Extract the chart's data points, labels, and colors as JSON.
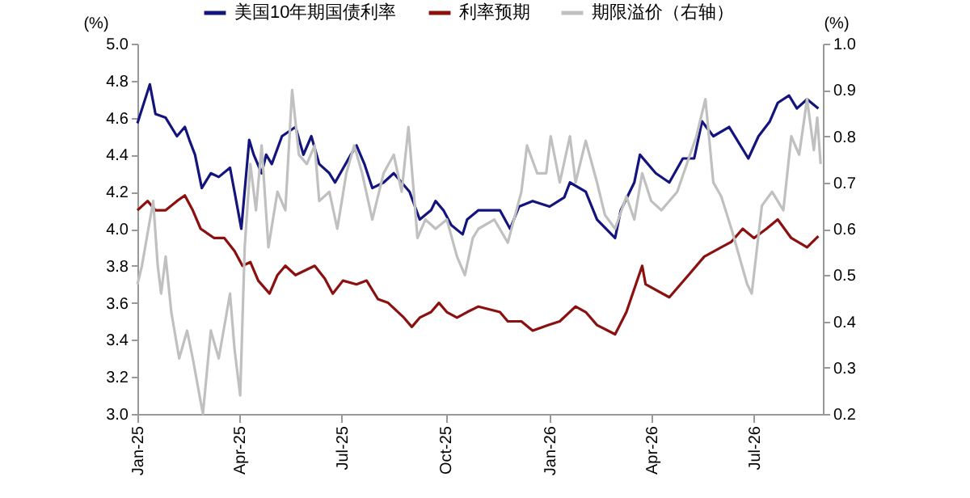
{
  "chart_data": {
    "type": "line",
    "ylabel": "(%)",
    "y2label": "(%)",
    "legend": "top",
    "xlim": [
      "2025-01-01",
      "2026-08-31"
    ],
    "xticks": [
      {
        "value": "2025-01-01",
        "label": "Jan-25"
      },
      {
        "value": "2025-04-01",
        "label": "Apr-25"
      },
      {
        "value": "2025-07-01",
        "label": "Jul-25"
      },
      {
        "value": "2025-10-01",
        "label": "Oct-25"
      },
      {
        "value": "2026-01-01",
        "label": "Jan-26"
      },
      {
        "value": "2026-04-01",
        "label": "Apr-26"
      },
      {
        "value": "2026-07-01",
        "label": "Jul-26"
      }
    ],
    "ylim": [
      3,
      5
    ],
    "yticks": [
      {
        "value": 3,
        "label": "3.0"
      },
      3.2,
      3.4,
      3.6,
      3.8,
      {
        "value": 4,
        "label": "4.0"
      },
      4.2,
      4.4,
      4.6,
      4.8,
      {
        "value": 5,
        "label": "5.0"
      }
    ],
    "y2lim": [
      0.2,
      1
    ],
    "y2ticks": [
      0.2,
      0.3,
      0.4,
      0.5,
      0.6,
      0.7,
      0.8,
      0.9,
      {
        "value": 1,
        "label": "1.0"
      }
    ],
    "series": [
      {
        "name": "美国10年期国债利率",
        "color": "#14147f",
        "x": [
          "2025-01-01",
          "2025-01-12",
          "2025-01-17",
          "2025-01-26",
          "2025-02-05",
          "2025-02-12",
          "2025-02-16",
          "2025-02-21",
          "2025-02-27",
          "2025-03-07",
          "2025-03-14",
          "2025-03-24",
          "2025-03-28",
          "2025-04-03",
          "2025-04-10",
          "2025-04-14",
          "2025-04-21",
          "2025-04-25",
          "2025-04-30",
          "2025-05-09",
          "2025-05-21",
          "2025-05-28",
          "2025-06-04",
          "2025-06-11",
          "2025-06-20",
          "2025-06-25",
          "2025-07-09",
          "2025-07-14",
          "2025-07-21",
          "2025-07-28",
          "2025-08-07",
          "2025-08-16",
          "2025-08-30",
          "2025-09-08",
          "2025-09-18",
          "2025-09-22",
          "2025-09-29",
          "2025-10-06",
          "2025-10-16",
          "2025-10-20",
          "2025-10-30",
          "2025-11-18",
          "2025-11-27",
          "2025-12-05",
          "2025-12-17",
          "2026-01-01",
          "2026-01-14",
          "2026-01-19",
          "2026-02-02",
          "2026-02-12",
          "2026-02-28",
          "2026-03-05",
          "2026-03-17",
          "2026-03-22",
          "2026-04-05",
          "2026-04-17",
          "2026-04-29",
          "2026-05-09",
          "2026-05-16",
          "2026-05-26",
          "2026-06-09",
          "2026-06-16",
          "2026-06-26",
          "2026-07-05",
          "2026-07-15",
          "2026-07-22",
          "2026-08-01",
          "2026-08-08",
          "2026-08-17",
          "2026-08-27"
        ],
        "values": [
          4.57,
          4.78,
          4.62,
          4.6,
          4.5,
          4.55,
          4.48,
          4.4,
          4.22,
          4.3,
          4.28,
          4.33,
          4.2,
          4.0,
          4.48,
          4.4,
          4.3,
          4.4,
          4.35,
          4.5,
          4.55,
          4.4,
          4.5,
          4.35,
          4.3,
          4.25,
          4.4,
          4.45,
          4.35,
          4.22,
          4.25,
          4.3,
          4.2,
          4.05,
          4.1,
          4.15,
          4.1,
          4.02,
          3.97,
          4.05,
          4.1,
          4.1,
          4.0,
          4.12,
          4.15,
          4.12,
          4.17,
          4.25,
          4.2,
          4.05,
          3.95,
          4.1,
          4.25,
          4.4,
          4.3,
          4.25,
          4.38,
          4.38,
          4.58,
          4.5,
          4.55,
          4.48,
          4.38,
          4.5,
          4.58,
          4.68,
          4.72,
          4.65,
          4.7,
          4.65
        ]
      },
      {
        "name": "利率预期",
        "color": "#8b1010",
        "x": [
          "2025-01-01",
          "2025-01-10",
          "2025-01-17",
          "2025-01-26",
          "2025-02-05",
          "2025-02-12",
          "2025-02-19",
          "2025-02-26",
          "2025-03-10",
          "2025-03-19",
          "2025-03-28",
          "2025-04-04",
          "2025-04-11",
          "2025-04-18",
          "2025-04-28",
          "2025-05-05",
          "2025-05-12",
          "2025-05-21",
          "2025-06-07",
          "2025-06-16",
          "2025-06-23",
          "2025-07-02",
          "2025-07-14",
          "2025-07-23",
          "2025-08-02",
          "2025-08-11",
          "2025-08-25",
          "2025-09-01",
          "2025-09-08",
          "2025-09-18",
          "2025-09-25",
          "2025-10-02",
          "2025-10-11",
          "2025-10-20",
          "2025-10-30",
          "2025-11-18",
          "2025-11-25",
          "2025-12-07",
          "2025-12-17",
          "2025-12-31",
          "2026-01-10",
          "2026-01-24",
          "2026-02-02",
          "2026-02-12",
          "2026-02-28",
          "2026-03-10",
          "2026-03-24",
          "2026-03-27",
          "2026-04-17",
          "2026-05-04",
          "2026-05-18",
          "2026-06-02",
          "2026-06-11",
          "2026-06-21",
          "2026-07-01",
          "2026-07-12",
          "2026-07-22",
          "2026-08-03",
          "2026-08-17",
          "2026-08-27"
        ],
        "values": [
          4.1,
          4.15,
          4.1,
          4.1,
          4.15,
          4.18,
          4.1,
          4.0,
          3.95,
          3.95,
          3.88,
          3.8,
          3.82,
          3.72,
          3.65,
          3.75,
          3.8,
          3.75,
          3.8,
          3.73,
          3.65,
          3.72,
          3.7,
          3.72,
          3.62,
          3.6,
          3.52,
          3.47,
          3.52,
          3.55,
          3.6,
          3.55,
          3.52,
          3.55,
          3.58,
          3.55,
          3.5,
          3.5,
          3.45,
          3.48,
          3.5,
          3.58,
          3.55,
          3.48,
          3.43,
          3.55,
          3.8,
          3.7,
          3.63,
          3.75,
          3.85,
          3.9,
          3.93,
          4.0,
          3.95,
          4.0,
          4.05,
          3.95,
          3.9,
          3.96
        ]
      },
      {
        "name": "期限溢价（右轴）",
        "color": "#c0c0c0",
        "axis": "y2",
        "x": [
          "2025-01-01",
          "2025-01-05",
          "2025-01-15",
          "2025-01-19",
          "2025-01-22",
          "2025-01-26",
          "2025-01-31",
          "2025-02-07",
          "2025-02-14",
          "2025-02-19",
          "2025-02-28",
          "2025-03-07",
          "2025-03-14",
          "2025-03-24",
          "2025-03-28",
          "2025-04-02",
          "2025-04-06",
          "2025-04-11",
          "2025-04-16",
          "2025-04-21",
          "2025-04-27",
          "2025-05-05",
          "2025-05-12",
          "2025-05-18",
          "2025-05-24",
          "2025-05-31",
          "2025-06-07",
          "2025-06-11",
          "2025-06-20",
          "2025-06-27",
          "2025-07-05",
          "2025-07-12",
          "2025-07-19",
          "2025-07-28",
          "2025-08-07",
          "2025-08-16",
          "2025-08-23",
          "2025-08-29",
          "2025-09-06",
          "2025-09-13",
          "2025-09-22",
          "2025-10-02",
          "2025-10-11",
          "2025-10-18",
          "2025-10-25",
          "2025-10-30",
          "2025-11-13",
          "2025-11-25",
          "2025-12-07",
          "2025-12-12",
          "2025-12-21",
          "2025-12-29",
          "2026-01-02",
          "2026-01-10",
          "2026-01-19",
          "2026-01-24",
          "2026-02-02",
          "2026-02-12",
          "2026-02-19",
          "2026-02-28",
          "2026-03-10",
          "2026-03-17",
          "2026-03-24",
          "2026-04-01",
          "2026-04-10",
          "2026-04-24",
          "2026-05-11",
          "2026-05-19",
          "2026-05-26",
          "2026-06-02",
          "2026-06-11",
          "2026-06-25",
          "2026-06-29",
          "2026-07-08",
          "2026-07-17",
          "2026-07-27",
          "2026-08-03",
          "2026-08-10",
          "2026-08-17",
          "2026-08-23",
          "2026-08-26",
          "2026-08-29"
        ],
        "values": [
          0.48,
          0.52,
          0.66,
          0.52,
          0.46,
          0.54,
          0.42,
          0.32,
          0.38,
          0.32,
          0.2,
          0.38,
          0.32,
          0.46,
          0.34,
          0.24,
          0.56,
          0.74,
          0.64,
          0.78,
          0.56,
          0.68,
          0.64,
          0.9,
          0.76,
          0.74,
          0.78,
          0.66,
          0.68,
          0.6,
          0.72,
          0.78,
          0.72,
          0.62,
          0.72,
          0.76,
          0.68,
          0.82,
          0.58,
          0.62,
          0.6,
          0.62,
          0.54,
          0.5,
          0.58,
          0.6,
          0.62,
          0.57,
          0.68,
          0.78,
          0.72,
          0.72,
          0.8,
          0.7,
          0.8,
          0.7,
          0.79,
          0.7,
          0.63,
          0.6,
          0.67,
          0.62,
          0.72,
          0.66,
          0.64,
          0.68,
          0.8,
          0.88,
          0.7,
          0.67,
          0.6,
          0.48,
          0.46,
          0.65,
          0.68,
          0.64,
          0.8,
          0.76,
          0.88,
          0.77,
          0.84,
          0.74
        ]
      }
    ]
  }
}
